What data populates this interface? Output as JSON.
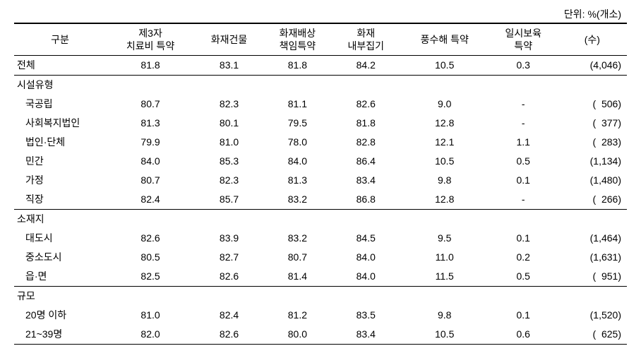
{
  "unit_label": "단위: %(개소)",
  "columns": [
    "구분",
    "제3자\n치료비 특약",
    "화재건물",
    "화재배상\n책임특약",
    "화재\n내부집기",
    "풍수해 특약",
    "일시보육\n특약",
    "(수)"
  ],
  "total_row": {
    "label": "전체",
    "values": [
      "81.8",
      "83.1",
      "81.8",
      "84.2",
      "10.5",
      "0.3",
      "(4,046)"
    ]
  },
  "sections": [
    {
      "header": "시설유형",
      "rows": [
        {
          "label": "국공립",
          "values": [
            "80.7",
            "82.3",
            "81.1",
            "82.6",
            "9.0",
            "-",
            "(  506)"
          ]
        },
        {
          "label": "사회복지법인",
          "values": [
            "81.3",
            "80.1",
            "79.5",
            "81.8",
            "12.8",
            "-",
            "(  377)"
          ]
        },
        {
          "label": "법인·단체",
          "values": [
            "79.9",
            "81.0",
            "78.0",
            "82.8",
            "12.1",
            "1.1",
            "(  283)"
          ]
        },
        {
          "label": "민간",
          "values": [
            "84.0",
            "85.3",
            "84.0",
            "86.4",
            "10.5",
            "0.5",
            "(1,134)"
          ]
        },
        {
          "label": "가정",
          "values": [
            "80.7",
            "82.3",
            "81.3",
            "83.4",
            "9.8",
            "0.1",
            "(1,480)"
          ]
        },
        {
          "label": "직장",
          "values": [
            "82.4",
            "85.7",
            "83.2",
            "86.8",
            "12.8",
            "-",
            "(  266)"
          ]
        }
      ]
    },
    {
      "header": "소재지",
      "rows": [
        {
          "label": "대도시",
          "values": [
            "82.6",
            "83.9",
            "83.2",
            "84.5",
            "9.5",
            "0.1",
            "(1,464)"
          ]
        },
        {
          "label": "중소도시",
          "values": [
            "80.5",
            "82.7",
            "80.7",
            "84.0",
            "11.0",
            "0.2",
            "(1,631)"
          ]
        },
        {
          "label": "읍·면",
          "values": [
            "82.5",
            "82.6",
            "81.4",
            "84.0",
            "11.5",
            "0.5",
            "(  951)"
          ]
        }
      ]
    },
    {
      "header": "규모",
      "rows": [
        {
          "label": "20명 이하",
          "values": [
            "81.0",
            "82.4",
            "81.2",
            "83.5",
            "9.8",
            "0.1",
            "(1,520)"
          ]
        },
        {
          "label": "21~39명",
          "values": [
            "82.0",
            "82.6",
            "80.0",
            "83.4",
            "10.5",
            "0.6",
            "(  625)"
          ]
        }
      ]
    }
  ]
}
